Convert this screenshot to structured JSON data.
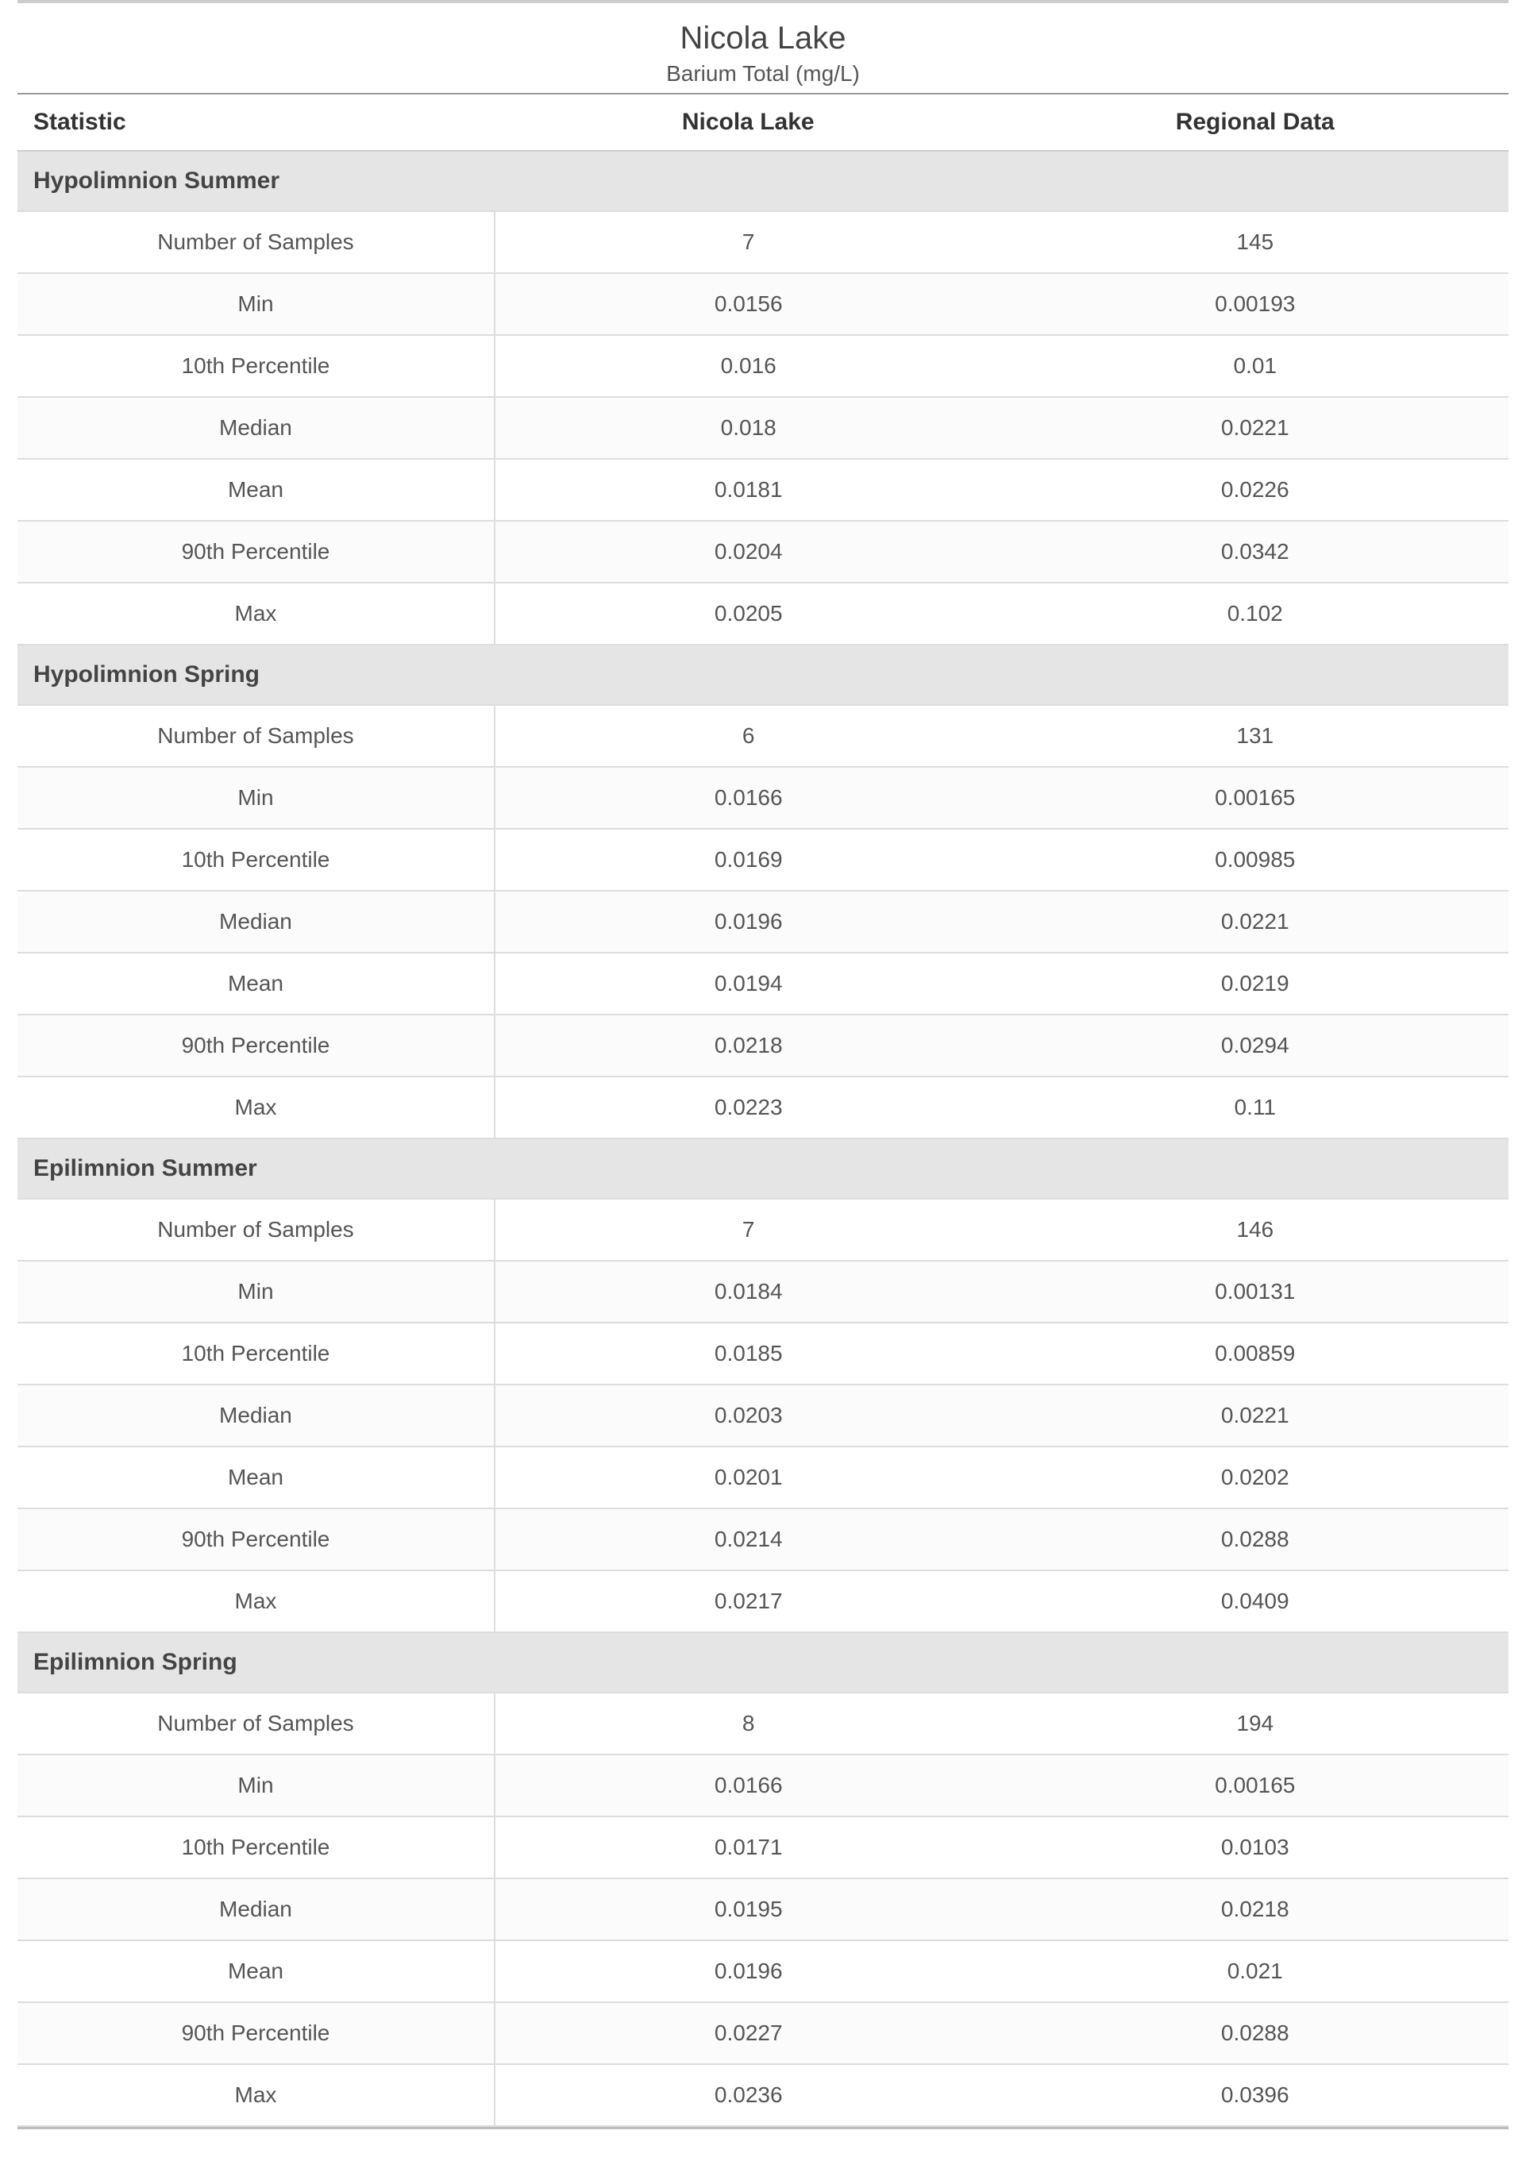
{
  "title": "Nicola Lake",
  "subtitle": "Barium Total (mg/L)",
  "columns": {
    "stat": "Statistic",
    "col1": "Nicola Lake",
    "col2": "Regional Data"
  },
  "table": {
    "type": "table",
    "colors": {
      "section_bg": "#e5e5e5",
      "row_border": "#dddddd",
      "header_border": "#cccccc",
      "text": "#444444",
      "alt_row_bg": "#fbfbfb"
    },
    "col_widths_pct": [
      32,
      34,
      34
    ],
    "font_family": "Segoe UI",
    "header_fontsize_pt": 15,
    "cell_fontsize_pt": 14
  },
  "sections": [
    {
      "name": "Hypolimnion Summer",
      "rows": [
        {
          "stat": "Number of Samples",
          "v1": "7",
          "v2": "145"
        },
        {
          "stat": "Min",
          "v1": "0.0156",
          "v2": "0.00193"
        },
        {
          "stat": "10th Percentile",
          "v1": "0.016",
          "v2": "0.01"
        },
        {
          "stat": "Median",
          "v1": "0.018",
          "v2": "0.0221"
        },
        {
          "stat": "Mean",
          "v1": "0.0181",
          "v2": "0.0226"
        },
        {
          "stat": "90th Percentile",
          "v1": "0.0204",
          "v2": "0.0342"
        },
        {
          "stat": "Max",
          "v1": "0.0205",
          "v2": "0.102"
        }
      ]
    },
    {
      "name": "Hypolimnion Spring",
      "rows": [
        {
          "stat": "Number of Samples",
          "v1": "6",
          "v2": "131"
        },
        {
          "stat": "Min",
          "v1": "0.0166",
          "v2": "0.00165"
        },
        {
          "stat": "10th Percentile",
          "v1": "0.0169",
          "v2": "0.00985"
        },
        {
          "stat": "Median",
          "v1": "0.0196",
          "v2": "0.0221"
        },
        {
          "stat": "Mean",
          "v1": "0.0194",
          "v2": "0.0219"
        },
        {
          "stat": "90th Percentile",
          "v1": "0.0218",
          "v2": "0.0294"
        },
        {
          "stat": "Max",
          "v1": "0.0223",
          "v2": "0.11"
        }
      ]
    },
    {
      "name": "Epilimnion Summer",
      "rows": [
        {
          "stat": "Number of Samples",
          "v1": "7",
          "v2": "146"
        },
        {
          "stat": "Min",
          "v1": "0.0184",
          "v2": "0.00131"
        },
        {
          "stat": "10th Percentile",
          "v1": "0.0185",
          "v2": "0.00859"
        },
        {
          "stat": "Median",
          "v1": "0.0203",
          "v2": "0.0221"
        },
        {
          "stat": "Mean",
          "v1": "0.0201",
          "v2": "0.0202"
        },
        {
          "stat": "90th Percentile",
          "v1": "0.0214",
          "v2": "0.0288"
        },
        {
          "stat": "Max",
          "v1": "0.0217",
          "v2": "0.0409"
        }
      ]
    },
    {
      "name": "Epilimnion Spring",
      "rows": [
        {
          "stat": "Number of Samples",
          "v1": "8",
          "v2": "194"
        },
        {
          "stat": "Min",
          "v1": "0.0166",
          "v2": "0.00165"
        },
        {
          "stat": "10th Percentile",
          "v1": "0.0171",
          "v2": "0.0103"
        },
        {
          "stat": "Median",
          "v1": "0.0195",
          "v2": "0.0218"
        },
        {
          "stat": "Mean",
          "v1": "0.0196",
          "v2": "0.021"
        },
        {
          "stat": "90th Percentile",
          "v1": "0.0227",
          "v2": "0.0288"
        },
        {
          "stat": "Max",
          "v1": "0.0236",
          "v2": "0.0396"
        }
      ]
    }
  ]
}
